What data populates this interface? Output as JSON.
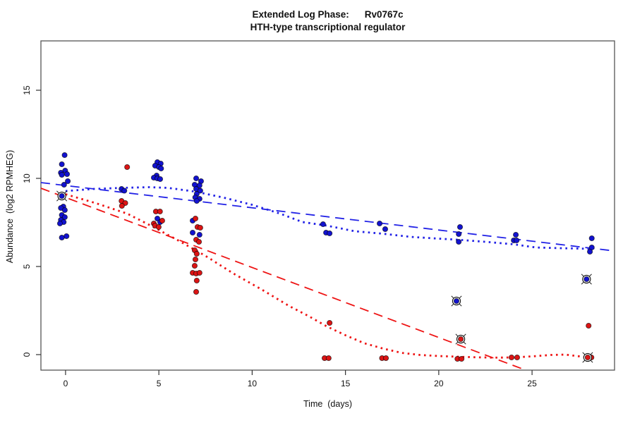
{
  "chart_data": {
    "type": "scatter",
    "title_line1_left": "Extended Log Phase:",
    "title_line1_right": "Rv0767c",
    "title_line2": "HTH-type transcriptional regulator",
    "title": "Extended Log Phase: Rv0767c — HTH-type transcriptional regulator",
    "xlabel": "Time  (days)",
    "ylabel": "Abundance  (log2 RPMHEG)",
    "xlim": [
      -1.32,
      29.42
    ],
    "ylim": [
      -0.88,
      17.8
    ],
    "x_ticks": [
      0,
      5,
      10,
      15,
      20,
      25
    ],
    "y_ticks": [
      0,
      5,
      10,
      15
    ],
    "grid": false,
    "legend": "none",
    "colors": {
      "series_blue": "#1212D0",
      "series_red": "#DC1414",
      "line_blue": "#2222E6",
      "line_red": "#EE1414",
      "marker_edge": "#000000",
      "axis": "#555555",
      "tick": "#333333"
    },
    "series": [
      {
        "name": "blue-points",
        "color_key": "series_blue",
        "circled": false,
        "points": [
          [
            -0.05,
            11.32
          ],
          [
            -0.2,
            10.8
          ],
          [
            -0.02,
            10.44
          ],
          [
            -0.25,
            10.32
          ],
          [
            0.08,
            10.24
          ],
          [
            -0.2,
            10.2
          ],
          [
            0.12,
            9.84
          ],
          [
            -0.08,
            9.64
          ],
          [
            -0.12,
            8.4
          ],
          [
            -0.25,
            8.32
          ],
          [
            -0.04,
            8.2
          ],
          [
            -0.2,
            7.92
          ],
          [
            -0.04,
            7.8
          ],
          [
            -0.25,
            7.64
          ],
          [
            -0.1,
            7.52
          ],
          [
            -0.3,
            7.44
          ],
          [
            0.05,
            6.72
          ],
          [
            -0.2,
            6.64
          ],
          [
            3.0,
            9.4
          ],
          [
            3.15,
            9.3
          ],
          [
            4.92,
            10.92
          ],
          [
            5.1,
            10.84
          ],
          [
            4.8,
            10.72
          ],
          [
            5.0,
            10.64
          ],
          [
            5.12,
            10.56
          ],
          [
            4.88,
            10.16
          ],
          [
            4.73,
            10.04
          ],
          [
            4.92,
            10.0
          ],
          [
            5.07,
            9.96
          ],
          [
            4.92,
            7.72
          ],
          [
            5.07,
            7.52
          ],
          [
            7.0,
            10.0
          ],
          [
            7.26,
            9.84
          ],
          [
            6.92,
            9.64
          ],
          [
            7.18,
            9.6
          ],
          [
            7.0,
            9.4
          ],
          [
            7.22,
            9.3
          ],
          [
            7.03,
            9.12
          ],
          [
            6.95,
            8.92
          ],
          [
            7.18,
            8.84
          ],
          [
            7.03,
            8.72
          ],
          [
            6.81,
            7.6
          ],
          [
            6.81,
            6.92
          ],
          [
            7.18,
            6.8
          ],
          [
            13.8,
            7.4
          ],
          [
            13.96,
            6.92
          ],
          [
            14.15,
            6.88
          ],
          [
            16.83,
            7.44
          ],
          [
            17.13,
            7.12
          ],
          [
            21.14,
            7.24
          ],
          [
            21.07,
            6.84
          ],
          [
            21.07,
            6.4
          ],
          [
            24.13,
            6.8
          ],
          [
            24.02,
            6.48
          ],
          [
            24.17,
            6.48
          ],
          [
            28.2,
            6.6
          ],
          [
            28.2,
            6.08
          ],
          [
            28.1,
            5.84
          ]
        ]
      },
      {
        "name": "red-points",
        "color_key": "series_red",
        "circled": false,
        "points": [
          [
            3.3,
            10.64
          ],
          [
            3.0,
            8.72
          ],
          [
            3.2,
            8.6
          ],
          [
            3.02,
            8.44
          ],
          [
            4.84,
            8.12
          ],
          [
            5.06,
            8.12
          ],
          [
            5.18,
            7.6
          ],
          [
            4.73,
            7.44
          ],
          [
            4.8,
            7.32
          ],
          [
            4.99,
            7.24
          ],
          [
            6.96,
            7.72
          ],
          [
            7.07,
            7.24
          ],
          [
            7.22,
            7.2
          ],
          [
            7.0,
            6.52
          ],
          [
            7.15,
            6.4
          ],
          [
            6.92,
            5.92
          ],
          [
            7.03,
            5.72
          ],
          [
            6.96,
            5.4
          ],
          [
            6.92,
            5.04
          ],
          [
            6.81,
            4.64
          ],
          [
            7.0,
            4.6
          ],
          [
            7.18,
            4.64
          ],
          [
            7.03,
            4.2
          ],
          [
            7.0,
            3.56
          ],
          [
            14.15,
            1.8
          ],
          [
            13.88,
            -0.2
          ],
          [
            14.1,
            -0.2
          ],
          [
            16.96,
            -0.2
          ],
          [
            17.17,
            -0.2
          ],
          [
            21.0,
            -0.24
          ],
          [
            21.22,
            -0.24
          ],
          [
            23.9,
            -0.16
          ],
          [
            24.2,
            -0.16
          ],
          [
            28.03,
            1.64
          ],
          [
            28.18,
            -0.16
          ]
        ]
      },
      {
        "name": "blue-circled-outliers",
        "color_key": "series_blue",
        "circled": true,
        "points": [
          [
            -0.2,
            9.0
          ],
          [
            20.95,
            3.04
          ],
          [
            27.92,
            4.28
          ]
        ]
      },
      {
        "name": "red-circled-outliers",
        "color_key": "series_red",
        "circled": true,
        "points": [
          [
            21.18,
            0.88
          ],
          [
            27.98,
            -0.16
          ]
        ]
      }
    ],
    "lines": [
      {
        "name": "blue-dashed-linear-fit",
        "style": "dashed",
        "color_key": "line_blue",
        "points": [
          [
            -1.32,
            9.76
          ],
          [
            29.42,
            5.88
          ]
        ]
      },
      {
        "name": "red-dashed-linear-fit",
        "style": "dashed",
        "color_key": "line_red",
        "points": [
          [
            -1.32,
            9.44
          ],
          [
            24.66,
            -0.88
          ]
        ]
      },
      {
        "name": "blue-dotted-smooth-fit",
        "style": "dotted",
        "color_key": "line_blue",
        "points": [
          [
            0,
            9.28
          ],
          [
            1.5,
            9.4
          ],
          [
            3,
            9.46
          ],
          [
            4.5,
            9.5
          ],
          [
            5.5,
            9.46
          ],
          [
            7,
            9.24
          ],
          [
            8.5,
            8.9
          ],
          [
            10,
            8.5
          ],
          [
            11.5,
            8.0
          ],
          [
            12.7,
            7.52
          ],
          [
            14,
            7.32
          ],
          [
            15.5,
            7.0
          ],
          [
            17,
            6.86
          ],
          [
            18.5,
            6.68
          ],
          [
            20,
            6.58
          ],
          [
            21,
            6.52
          ],
          [
            22.5,
            6.4
          ],
          [
            24,
            6.26
          ],
          [
            25.2,
            6.08
          ],
          [
            26.5,
            6.04
          ],
          [
            28.25,
            6.0
          ]
        ]
      },
      {
        "name": "red-dotted-smooth-fit",
        "style": "dotted",
        "color_key": "line_red",
        "points": [
          [
            0,
            9.1
          ],
          [
            1.6,
            8.6
          ],
          [
            3.3,
            8.0
          ],
          [
            4.6,
            7.3
          ],
          [
            6,
            6.5
          ],
          [
            7.5,
            5.6
          ],
          [
            9,
            4.6
          ],
          [
            10.5,
            3.7
          ],
          [
            12,
            2.75
          ],
          [
            13,
            2.2
          ],
          [
            14,
            1.6
          ],
          [
            15,
            1.1
          ],
          [
            16,
            0.65
          ],
          [
            17,
            0.35
          ],
          [
            18,
            0.1
          ],
          [
            19,
            -0.02
          ],
          [
            20,
            -0.08
          ],
          [
            21,
            -0.12
          ],
          [
            22,
            -0.15
          ],
          [
            23,
            -0.17
          ],
          [
            24,
            -0.16
          ],
          [
            25,
            -0.1
          ],
          [
            26,
            -0.02
          ],
          [
            26.8,
            0.0
          ],
          [
            28,
            -0.16
          ]
        ]
      }
    ]
  }
}
